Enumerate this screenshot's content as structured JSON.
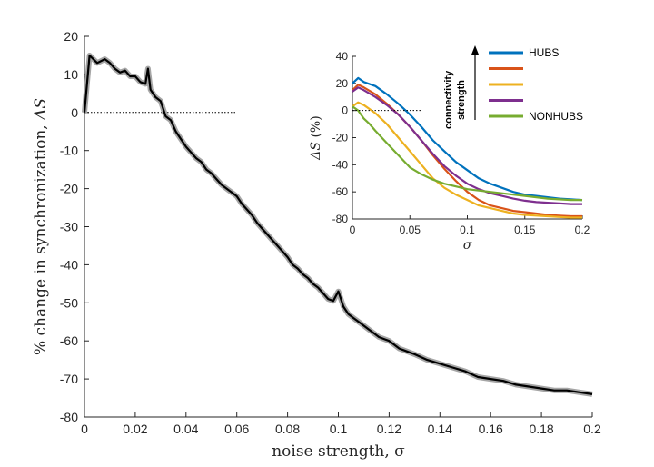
{
  "chart_data": [
    {
      "type": "line",
      "xlabel": "noise strength, σ",
      "ylabel_text": "% change in synchronization, ",
      "ylabel_symbol": "ΔS",
      "xlim": [
        0,
        0.2
      ],
      "ylim": [
        -80,
        20
      ],
      "xticks": [
        0,
        0.02,
        0.04,
        0.06,
        0.08,
        0.1,
        0.12,
        0.14,
        0.16,
        0.18,
        0.2
      ],
      "xtick_labels": [
        "0",
        "0.02",
        "0.04",
        "0.06",
        "0.08",
        "0.1",
        "0.12",
        "0.14",
        "0.16",
        "0.18",
        "0.2"
      ],
      "yticks": [
        -80,
        -70,
        -60,
        -50,
        -40,
        -30,
        -20,
        -10,
        0,
        10,
        20
      ],
      "ytick_labels": [
        "-80",
        "-70",
        "-60",
        "-50",
        "-40",
        "-30",
        "-20",
        "-10",
        "0",
        "10",
        "20"
      ],
      "zero_line_xrange": [
        0,
        0.06
      ],
      "grid": false,
      "series": [
        {
          "color": "#000000",
          "band_color": "#a6a6a6",
          "x": [
            0,
            0.002,
            0.005,
            0.008,
            0.01,
            0.012,
            0.014,
            0.016,
            0.018,
            0.02,
            0.022,
            0.024,
            0.025,
            0.026,
            0.028,
            0.03,
            0.032,
            0.034,
            0.036,
            0.038,
            0.04,
            0.042,
            0.044,
            0.046,
            0.048,
            0.05,
            0.052,
            0.054,
            0.056,
            0.058,
            0.06,
            0.062,
            0.064,
            0.066,
            0.068,
            0.07,
            0.072,
            0.074,
            0.076,
            0.078,
            0.08,
            0.082,
            0.084,
            0.086,
            0.088,
            0.09,
            0.092,
            0.094,
            0.096,
            0.098,
            0.1,
            0.102,
            0.104,
            0.106,
            0.108,
            0.11,
            0.112,
            0.114,
            0.116,
            0.118,
            0.12,
            0.122,
            0.124,
            0.126,
            0.128,
            0.13,
            0.135,
            0.14,
            0.145,
            0.15,
            0.155,
            0.16,
            0.165,
            0.17,
            0.175,
            0.18,
            0.185,
            0.19,
            0.195,
            0.2
          ],
          "y": [
            0,
            15,
            13,
            14,
            13,
            11.5,
            10.5,
            11,
            9.5,
            9.5,
            8,
            7.5,
            11.5,
            6,
            4,
            3,
            -1,
            -2,
            -5,
            -7,
            -9,
            -10.5,
            -12,
            -13,
            -15,
            -16,
            -17.5,
            -19,
            -20,
            -21,
            -22,
            -24,
            -25.5,
            -27,
            -29,
            -30.5,
            -32,
            -33.5,
            -35,
            -36.5,
            -38,
            -40,
            -41,
            -42.5,
            -43.5,
            -45,
            -46,
            -47.5,
            -49,
            -49.5,
            -47,
            -51,
            -53,
            -54,
            -55,
            -56,
            -57,
            -58,
            -59,
            -59.5,
            -60,
            -61,
            -62,
            -62.5,
            -63,
            -63.5,
            -65,
            -66,
            -67,
            -68,
            -69.5,
            -70,
            -70.5,
            -71.5,
            -72,
            -72.5,
            -73,
            -73,
            -73.5,
            -74
          ]
        }
      ]
    },
    {
      "type": "line",
      "xlabel": "σ",
      "ylabel_symbol": "ΔS",
      "ylabel_text": " (%)",
      "xlim": [
        0,
        0.2
      ],
      "ylim": [
        -80,
        40
      ],
      "xticks": [
        0,
        0.05,
        0.1,
        0.15,
        0.2
      ],
      "xtick_labels": [
        "0",
        "0.05",
        "0.1",
        "0.15",
        "0.2"
      ],
      "yticks": [
        -80,
        -60,
        -40,
        -20,
        0,
        20,
        40
      ],
      "ytick_labels": [
        "-80",
        "-60",
        "-40",
        "-20",
        "0",
        "20",
        "40"
      ],
      "zero_line_xrange": [
        0,
        0.06
      ],
      "grid": false,
      "annotation": [
        "connectivity",
        "strength"
      ],
      "legend_position": "top-right",
      "series": [
        {
          "name": "HUBS",
          "color": "#0072bd",
          "x": [
            0,
            0.005,
            0.01,
            0.02,
            0.03,
            0.04,
            0.05,
            0.06,
            0.07,
            0.08,
            0.09,
            0.1,
            0.11,
            0.12,
            0.13,
            0.14,
            0.15,
            0.16,
            0.17,
            0.18,
            0.19,
            0.2
          ],
          "y": [
            20,
            24,
            21,
            18,
            12,
            5,
            -3,
            -12,
            -22,
            -30,
            -38,
            -44,
            -50,
            -54,
            -57,
            -60,
            -62,
            -63,
            -64,
            -65,
            -65.5,
            -66
          ]
        },
        {
          "name": "",
          "color": "#d95319",
          "x": [
            0,
            0.005,
            0.01,
            0.02,
            0.03,
            0.04,
            0.05,
            0.06,
            0.07,
            0.08,
            0.09,
            0.1,
            0.11,
            0.12,
            0.13,
            0.14,
            0.15,
            0.16,
            0.17,
            0.18,
            0.19,
            0.2
          ],
          "y": [
            15,
            19,
            17,
            12,
            5,
            -3,
            -12,
            -22,
            -33,
            -43,
            -52,
            -60,
            -66,
            -70,
            -72,
            -74,
            -75,
            -76,
            -77,
            -77.5,
            -78,
            -78
          ]
        },
        {
          "name": "",
          "color": "#edb120",
          "x": [
            0,
            0.005,
            0.01,
            0.02,
            0.03,
            0.04,
            0.05,
            0.06,
            0.07,
            0.08,
            0.09,
            0.1,
            0.11,
            0.12,
            0.13,
            0.14,
            0.15,
            0.16,
            0.17,
            0.18,
            0.19,
            0.2
          ],
          "y": [
            3,
            6,
            4,
            -2,
            -10,
            -20,
            -30,
            -40,
            -50,
            -57,
            -62,
            -66,
            -70,
            -72,
            -74,
            -76,
            -77,
            -77.5,
            -78,
            -78.5,
            -79,
            -79
          ]
        },
        {
          "name": "",
          "color": "#7e2f8e",
          "x": [
            0,
            0.005,
            0.01,
            0.02,
            0.03,
            0.04,
            0.05,
            0.06,
            0.07,
            0.08,
            0.09,
            0.1,
            0.11,
            0.12,
            0.13,
            0.14,
            0.15,
            0.16,
            0.17,
            0.18,
            0.19,
            0.2
          ],
          "y": [
            14,
            17,
            15,
            10,
            4,
            -3,
            -12,
            -22,
            -32,
            -41,
            -48,
            -54,
            -58,
            -61,
            -63,
            -65,
            -66.5,
            -67.5,
            -68,
            -68.5,
            -69,
            -69
          ]
        },
        {
          "name": "NONHUBS",
          "color": "#77ac30",
          "x": [
            0,
            0.005,
            0.01,
            0.015,
            0.02,
            0.03,
            0.04,
            0.05,
            0.06,
            0.07,
            0.08,
            0.09,
            0.1,
            0.11,
            0.12,
            0.13,
            0.14,
            0.15,
            0.16,
            0.17,
            0.18,
            0.19,
            0.2
          ],
          "y": [
            3,
            0,
            -6,
            -10,
            -15,
            -24,
            -33,
            -42,
            -47,
            -51,
            -54,
            -56,
            -58,
            -59,
            -60,
            -61,
            -62,
            -63,
            -64,
            -65,
            -65.5,
            -66,
            -66
          ]
        }
      ]
    }
  ]
}
